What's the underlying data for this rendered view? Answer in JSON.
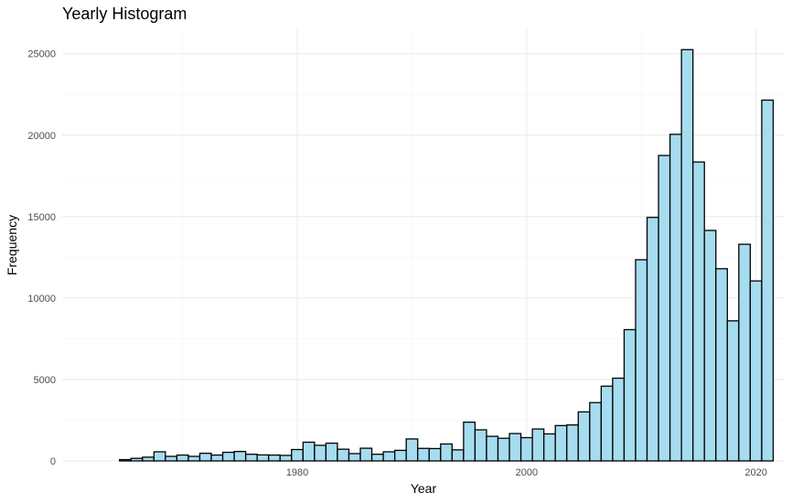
{
  "chart_data": {
    "type": "bar",
    "title": "Yearly Histogram",
    "xlabel": "Year",
    "ylabel": "Frequency",
    "bar_fill": "#a6dcef",
    "bar_stroke": "#000000",
    "grid": true,
    "xlim": [
      1959.5,
      2022.5
    ],
    "ylim": [
      0,
      26500
    ],
    "x_ticks": [
      1980,
      2000,
      2020
    ],
    "x_tick_labels": [
      "1980",
      "2000",
      "2020"
    ],
    "y_ticks": [
      0,
      5000,
      10000,
      15000,
      20000,
      25000
    ],
    "y_tick_labels": [
      "0",
      "5000",
      "10000",
      "15000",
      "20000",
      "25000"
    ],
    "bin_width": 1,
    "x": [
      1965,
      1966,
      1967,
      1968,
      1969,
      1970,
      1971,
      1972,
      1973,
      1974,
      1975,
      1976,
      1977,
      1978,
      1979,
      1980,
      1981,
      1982,
      1983,
      1984,
      1985,
      1986,
      1987,
      1988,
      1989,
      1990,
      1991,
      1992,
      1993,
      1994,
      1995,
      1996,
      1997,
      1998,
      1999,
      2000,
      2001,
      2002,
      2003,
      2004,
      2005,
      2006,
      2007,
      2008,
      2009,
      2010,
      2011,
      2012,
      2013,
      2014,
      2015,
      2016,
      2017,
      2018,
      2019,
      2020,
      2021
    ],
    "values": [
      80,
      160,
      230,
      560,
      280,
      360,
      280,
      470,
      360,
      530,
      580,
      410,
      370,
      360,
      340,
      700,
      1150,
      960,
      1090,
      720,
      450,
      780,
      410,
      560,
      650,
      1350,
      770,
      760,
      1040,
      680,
      2380,
      1910,
      1510,
      1390,
      1680,
      1430,
      1960,
      1660,
      2170,
      2210,
      3010,
      3580,
      4590,
      5080,
      8060,
      12350,
      14950,
      18750,
      20050,
      25250,
      18350,
      14150,
      11800,
      8600,
      13300,
      11050,
      22150
    ]
  }
}
